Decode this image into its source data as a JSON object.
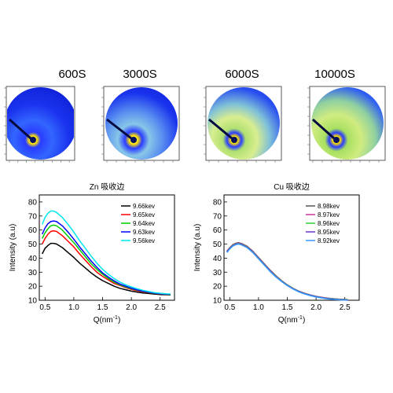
{
  "image_titles": [
    "600S",
    "3000S",
    "6000S",
    "10000S"
  ],
  "chart_data": [
    {
      "type": "line",
      "title": "Zn 吸收边",
      "xlabel": "Q(nm",
      "xlabel_sup": "-1",
      "xlabel_close": ")",
      "ylabel": "Intensity (a.u)",
      "xlim": [
        0.4,
        2.75
      ],
      "ylim": [
        10,
        85
      ],
      "xticks": [
        0.5,
        1.0,
        1.5,
        2.0,
        2.5
      ],
      "xtick_labels": [
        "0.5",
        "1.0",
        "1.5",
        "2.0",
        "2.5"
      ],
      "yticks": [
        10,
        20,
        30,
        40,
        50,
        60,
        70,
        80
      ],
      "ytick_labels": [
        "10",
        "20",
        "30",
        "40",
        "50",
        "60",
        "70",
        "80"
      ],
      "legend_position": "top-right",
      "x": [
        0.45,
        0.5,
        0.55,
        0.6,
        0.65,
        0.7,
        0.8,
        0.9,
        1.0,
        1.1,
        1.2,
        1.3,
        1.4,
        1.5,
        1.6,
        1.7,
        1.8,
        1.9,
        2.0,
        2.1,
        2.2,
        2.3,
        2.4,
        2.5,
        2.6,
        2.68
      ],
      "series": [
        {
          "name": "9.66kev",
          "color": "#000000",
          "values": [
            43,
            47,
            49,
            50.5,
            50.5,
            50,
            47.5,
            44,
            40.5,
            36.5,
            33,
            29.5,
            26.5,
            24,
            22,
            20,
            18.5,
            17.5,
            16.5,
            15.8,
            15.2,
            14.8,
            14.4,
            14.1,
            13.9,
            13.8
          ]
        },
        {
          "name": "9.65kev",
          "color": "#ff0000",
          "values": [
            50,
            54,
            57,
            59,
            59.5,
            59,
            56,
            52,
            48,
            43,
            38.5,
            34,
            30,
            27,
            24.5,
            22,
            20.5,
            19,
            17.8,
            16.8,
            16,
            15.4,
            14.9,
            14.5,
            14.2,
            14
          ]
        },
        {
          "name": "9.64kev",
          "color": "#00cc00",
          "values": [
            54,
            58,
            61,
            63,
            63.5,
            63,
            60,
            55.5,
            51,
            46,
            41,
            36,
            32,
            28.5,
            25.5,
            23,
            21,
            19.5,
            18.2,
            17.2,
            16.3,
            15.6,
            15,
            14.6,
            14.3,
            14.1
          ]
        },
        {
          "name": "9.63kev",
          "color": "#0000ff",
          "values": [
            57,
            61.5,
            64.5,
            66,
            66.5,
            66,
            63,
            58.5,
            53.5,
            48,
            43,
            38,
            33.5,
            29.5,
            26.5,
            23.8,
            21.6,
            20,
            18.6,
            17.4,
            16.5,
            15.7,
            15.1,
            14.7,
            14.4,
            14.2
          ]
        },
        {
          "name": "9.56kev",
          "color": "#00e5ee",
          "values": [
            64,
            69,
            72,
            73.5,
            73.5,
            72.5,
            69,
            64,
            58.5,
            52.5,
            47,
            41.5,
            36.5,
            32,
            28.5,
            25.5,
            23,
            21,
            19.5,
            18.2,
            17.1,
            16.2,
            15.5,
            15,
            14.6,
            14.4
          ]
        }
      ]
    },
    {
      "type": "line",
      "title": "Cu 吸收边",
      "xlabel": "Q(nm",
      "xlabel_sup": "-1",
      "xlabel_close": ")",
      "ylabel": "Intensity (a.u)",
      "xlim": [
        0.4,
        2.75
      ],
      "ylim": [
        10,
        85
      ],
      "xticks": [
        0.5,
        1.0,
        1.5,
        2.0,
        2.5
      ],
      "xtick_labels": [
        "0.5",
        "1.0",
        "1.5",
        "2.0",
        "2.5"
      ],
      "yticks": [
        10,
        20,
        30,
        40,
        50,
        60,
        70,
        80
      ],
      "ytick_labels": [
        "10",
        "20",
        "30",
        "40",
        "50",
        "60",
        "70",
        "80"
      ],
      "legend_position": "top-right",
      "x": [
        0.45,
        0.5,
        0.55,
        0.6,
        0.65,
        0.7,
        0.8,
        0.9,
        1.0,
        1.1,
        1.2,
        1.3,
        1.4,
        1.5,
        1.6,
        1.7,
        1.8,
        1.9,
        2.0,
        2.1,
        2.2,
        2.3,
        2.4,
        2.5,
        2.55
      ],
      "series": [
        {
          "name": "8.98kev",
          "color": "#555555",
          "values": [
            45,
            47.5,
            49.5,
            50.5,
            51,
            50.5,
            48.5,
            45,
            40.5,
            36,
            31.5,
            27.5,
            24,
            21,
            18.5,
            16.5,
            15,
            13.8,
            12.8,
            12.1,
            11.5,
            11.1,
            10.8,
            10.6,
            10.5
          ]
        },
        {
          "name": "8.97kev",
          "color": "#cc3399",
          "values": [
            45,
            47.3,
            49.3,
            50.3,
            50.8,
            50.3,
            48.3,
            44.8,
            40.3,
            35.8,
            31.3,
            27.3,
            23.9,
            20.9,
            18.4,
            16.4,
            14.9,
            13.7,
            12.7,
            12,
            11.4,
            11,
            10.7,
            10.5,
            10.4
          ]
        },
        {
          "name": "8.96kev",
          "color": "#33cc33",
          "values": [
            44.5,
            47,
            49,
            50,
            50.5,
            50,
            48,
            44.5,
            40,
            35.5,
            31,
            27,
            23.7,
            20.8,
            18.3,
            16.3,
            14.8,
            13.6,
            12.6,
            11.9,
            11.3,
            10.9,
            10.6,
            10.4,
            10.3
          ]
        },
        {
          "name": "8.95kev",
          "color": "#6633cc",
          "values": [
            44.5,
            46.8,
            48.8,
            49.8,
            50.3,
            49.8,
            47.8,
            44.3,
            39.8,
            35.3,
            30.8,
            26.8,
            23.5,
            20.6,
            18.2,
            16.2,
            14.7,
            13.5,
            12.5,
            11.8,
            11.2,
            10.8,
            10.5,
            10.3,
            10.2
          ]
        },
        {
          "name": "8.92kev",
          "color": "#3399ff",
          "values": [
            44,
            46.5,
            48.5,
            49.5,
            50,
            49.5,
            47.5,
            44,
            39.5,
            35,
            30.5,
            26.6,
            23.3,
            20.4,
            18,
            16,
            14.5,
            13.3,
            12.3,
            11.6,
            11,
            10.6,
            10.3,
            10.1,
            10
          ]
        }
      ]
    }
  ]
}
